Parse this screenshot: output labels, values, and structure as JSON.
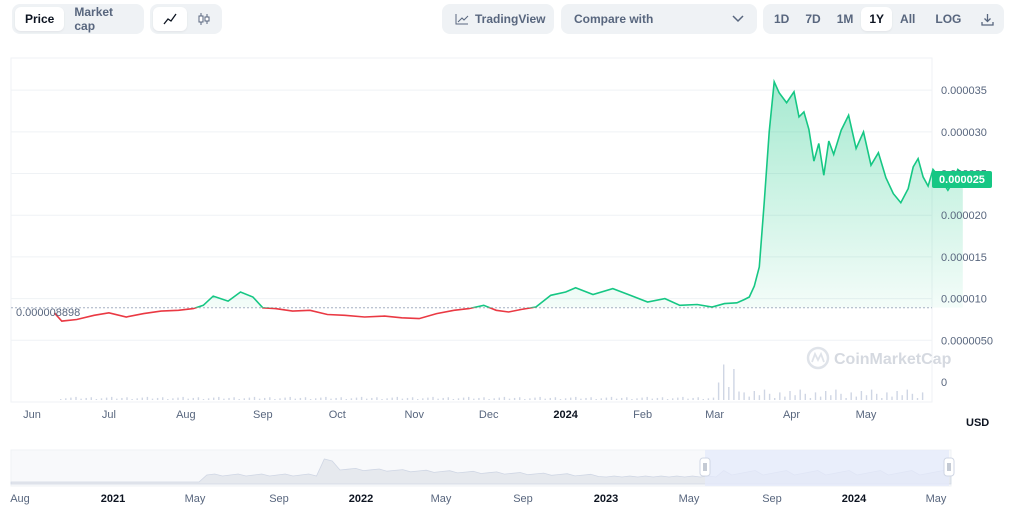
{
  "toolbar": {
    "tabs": [
      {
        "label": "Price",
        "active": true
      },
      {
        "label": "Market cap",
        "active": false
      }
    ],
    "line_icon": "line-chart-icon",
    "candle_icon": "candlestick-icon",
    "tradingview_label": "TradingView",
    "compare_label": "Compare with",
    "ranges": [
      {
        "label": "1D"
      },
      {
        "label": "7D"
      },
      {
        "label": "1M"
      },
      {
        "label": "1Y",
        "active": true
      },
      {
        "label": "All"
      }
    ],
    "log_label": "LOG",
    "download_icon": "download-icon"
  },
  "colors": {
    "up": "#16c784",
    "down": "#ea3943",
    "grid": "#eff2f5",
    "brush": "#e4e9fb"
  },
  "watermark": "CoinMarketCap",
  "currency": "USD",
  "chart_data": {
    "type": "line",
    "baseline_label": "0.000008898",
    "baseline_value": 8.898e-06,
    "current_label": "0.000025",
    "ylim": [
      0,
      3.85e-05
    ],
    "y_ticks": [
      {
        "label": "0.000035",
        "value": 3.5e-05
      },
      {
        "label": "0.000030",
        "value": 3e-05
      },
      {
        "label": "0.000025",
        "value": 2.5e-05
      },
      {
        "label": "0.000020",
        "value": 2e-05
      },
      {
        "label": "0.000015",
        "value": 1.5e-05
      },
      {
        "label": "0.000010",
        "value": 1e-05
      },
      {
        "label": "0.0000050",
        "value": 5e-06
      },
      {
        "label": "0",
        "value": 0
      }
    ],
    "x_ticks": [
      {
        "label": "Jun",
        "date": "2023-05-31"
      },
      {
        "label": "Jul",
        "date": "2023-07-01"
      },
      {
        "label": "Aug",
        "date": "2023-08-01"
      },
      {
        "label": "Sep",
        "date": "2023-09-01"
      },
      {
        "label": "Oct",
        "date": "2023-10-01"
      },
      {
        "label": "Nov",
        "date": "2023-11-01"
      },
      {
        "label": "Dec",
        "date": "2023-12-01"
      },
      {
        "label": "2024",
        "date": "2024-01-01",
        "bold": true
      },
      {
        "label": "Feb",
        "date": "2024-02-01"
      },
      {
        "label": "Mar",
        "date": "2024-03-01"
      },
      {
        "label": "Apr",
        "date": "2024-04-01"
      },
      {
        "label": "May",
        "date": "2024-05-01"
      }
    ],
    "x_range": [
      "2023-05-24",
      "2024-05-27"
    ],
    "series": [
      {
        "points": [
          [
            "2023-06-09",
            8.3e-06
          ],
          [
            "2023-06-12",
            7.3e-06
          ],
          [
            "2023-06-18",
            7.5e-06
          ],
          [
            "2023-06-25",
            8e-06
          ],
          [
            "2023-07-01",
            8.3e-06
          ],
          [
            "2023-07-08",
            7.8e-06
          ],
          [
            "2023-07-15",
            8.2e-06
          ],
          [
            "2023-07-22",
            8.5e-06
          ],
          [
            "2023-07-29",
            8.6e-06
          ],
          [
            "2023-08-04",
            8.8e-06
          ],
          [
            "2023-08-08",
            9.2e-06
          ],
          [
            "2023-08-12",
            1.03e-05
          ],
          [
            "2023-08-18",
            9.7e-06
          ],
          [
            "2023-08-23",
            1.08e-05
          ],
          [
            "2023-08-28",
            1.02e-05
          ],
          [
            "2023-09-01",
            8.9e-06
          ],
          [
            "2023-09-06",
            8.8e-06
          ],
          [
            "2023-09-13",
            8.5e-06
          ],
          [
            "2023-09-20",
            8.6e-06
          ],
          [
            "2023-09-27",
            8.1e-06
          ],
          [
            "2023-10-04",
            8e-06
          ],
          [
            "2023-10-12",
            7.8e-06
          ],
          [
            "2023-10-20",
            7.9e-06
          ],
          [
            "2023-10-27",
            7.7e-06
          ],
          [
            "2023-11-03",
            7.6e-06
          ],
          [
            "2023-11-10",
            8.2e-06
          ],
          [
            "2023-11-17",
            8.6e-06
          ],
          [
            "2023-11-23",
            8.8e-06
          ],
          [
            "2023-11-29",
            9.2e-06
          ],
          [
            "2023-12-04",
            8.6e-06
          ],
          [
            "2023-12-09",
            8.4e-06
          ],
          [
            "2023-12-14",
            8.7e-06
          ],
          [
            "2023-12-20",
            9e-06
          ],
          [
            "2023-12-26",
            1.04e-05
          ],
          [
            "2024-01-01",
            1.08e-05
          ],
          [
            "2024-01-05",
            1.13e-05
          ],
          [
            "2024-01-12",
            1.05e-05
          ],
          [
            "2024-01-20",
            1.12e-05
          ],
          [
            "2024-01-27",
            1.04e-05
          ],
          [
            "2024-02-03",
            9.6e-06
          ],
          [
            "2024-02-10",
            1e-05
          ],
          [
            "2024-02-16",
            9.2e-06
          ],
          [
            "2024-02-23",
            9.3e-06
          ],
          [
            "2024-02-29",
            9e-06
          ],
          [
            "2024-03-05",
            9.4e-06
          ],
          [
            "2024-03-10",
            9.5e-06
          ],
          [
            "2024-03-13",
            9.9e-06
          ],
          [
            "2024-03-15",
            1.02e-05
          ],
          [
            "2024-03-17",
            1.15e-05
          ],
          [
            "2024-03-19",
            1.38e-05
          ],
          [
            "2024-03-21",
            2.15e-05
          ],
          [
            "2024-03-23",
            3e-05
          ],
          [
            "2024-03-25",
            3.6e-05
          ],
          [
            "2024-03-27",
            3.47e-05
          ],
          [
            "2024-03-30",
            3.35e-05
          ],
          [
            "2024-04-02",
            3.48e-05
          ],
          [
            "2024-04-04",
            3.18e-05
          ],
          [
            "2024-04-06",
            3.24e-05
          ],
          [
            "2024-04-08",
            3.03e-05
          ],
          [
            "2024-04-10",
            2.65e-05
          ],
          [
            "2024-04-12",
            2.86e-05
          ],
          [
            "2024-04-14",
            2.48e-05
          ],
          [
            "2024-04-16",
            2.89e-05
          ],
          [
            "2024-04-18",
            2.73e-05
          ],
          [
            "2024-04-21",
            3.02e-05
          ],
          [
            "2024-04-24",
            3.2e-05
          ],
          [
            "2024-04-27",
            2.8e-05
          ],
          [
            "2024-04-30",
            3e-05
          ],
          [
            "2024-05-03",
            2.6e-05
          ],
          [
            "2024-05-06",
            2.75e-05
          ],
          [
            "2024-05-09",
            2.45e-05
          ],
          [
            "2024-05-12",
            2.26e-05
          ],
          [
            "2024-05-15",
            2.15e-05
          ],
          [
            "2024-05-18",
            2.32e-05
          ],
          [
            "2024-05-20",
            2.58e-05
          ],
          [
            "2024-05-22",
            2.68e-05
          ],
          [
            "2024-05-24",
            2.46e-05
          ],
          [
            "2024-05-26",
            2.35e-05
          ],
          [
            "2024-05-28",
            2.55e-05
          ],
          [
            "2024-05-31",
            2.44e-05
          ],
          [
            "2024-06-03",
            2.3e-05
          ],
          [
            "2024-06-05",
            2.4e-05
          ],
          [
            "2024-06-07",
            2.55e-05
          ],
          [
            "2024-06-09",
            2.5e-05
          ]
        ]
      }
    ],
    "navigator_ticks": [
      {
        "label": "Aug"
      },
      {
        "label": "2021",
        "bold": true
      },
      {
        "label": "May"
      },
      {
        "label": "Sep"
      },
      {
        "label": "2022",
        "bold": true
      },
      {
        "label": "May"
      },
      {
        "label": "Sep"
      },
      {
        "label": "2023",
        "bold": true
      },
      {
        "label": "May"
      },
      {
        "label": "Sep"
      },
      {
        "label": "2024",
        "bold": true
      },
      {
        "label": "May"
      }
    ]
  }
}
